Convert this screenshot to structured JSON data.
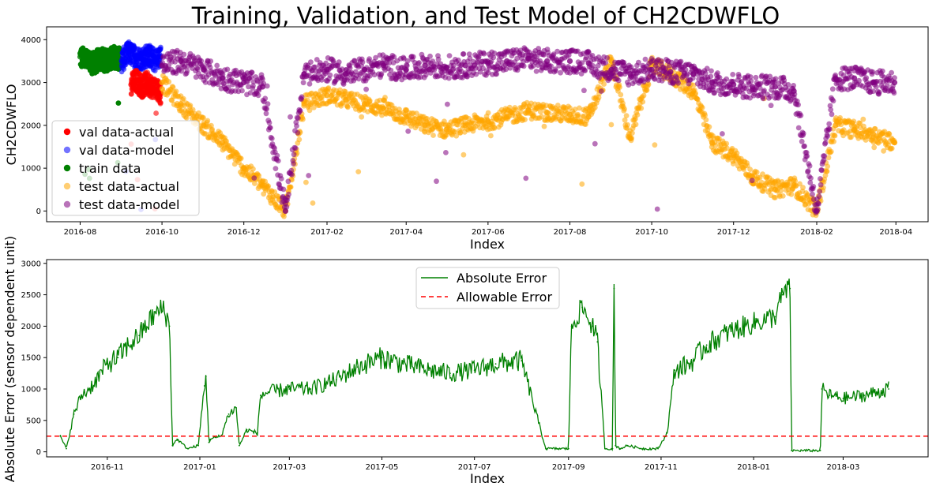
{
  "chart_data": [
    {
      "type": "scatter",
      "title": "Training, Validation, and Test Model of CH2CDWFLO",
      "xlabel": "Index",
      "ylabel": "CH2CDWFLO",
      "x_range": [
        "2016-07-07",
        "2018-04-25"
      ],
      "ylim": [
        -250,
        4300
      ],
      "x_ticks": [
        "2016-08",
        "2016-10",
        "2016-12",
        "2017-02",
        "2017-04",
        "2017-06",
        "2017-08",
        "2017-10",
        "2017-12",
        "2018-02",
        "2018-04"
      ],
      "y_ticks": [
        "0",
        "1000",
        "2000",
        "3000",
        "4000"
      ],
      "legend_position": "lower-left",
      "grid": false,
      "series": [
        {
          "name": "val data-actual",
          "color": "#ff0000",
          "x": [
            "2016-09-08",
            "2016-09-12",
            "2016-09-16",
            "2016-09-20",
            "2016-09-24",
            "2016-09-28",
            "2016-09-30"
          ],
          "y": [
            2950,
            3050,
            2900,
            3000,
            2880,
            2850,
            2750
          ]
        },
        {
          "name": "val data-model",
          "color": "#0000ff",
          "x": [
            "2016-09-01",
            "2016-09-06",
            "2016-09-11",
            "2016-09-16",
            "2016-09-21",
            "2016-09-26",
            "2016-09-30"
          ],
          "y": [
            3500,
            3700,
            3600,
            3550,
            3650,
            3500,
            3600
          ]
        },
        {
          "name": "train data",
          "color": "#008000",
          "x": [
            "2016-08-01",
            "2016-08-06",
            "2016-08-11",
            "2016-08-16",
            "2016-08-21",
            "2016-08-26",
            "2016-08-31"
          ],
          "y": [
            3600,
            3500,
            3450,
            3550,
            3500,
            3600,
            3550
          ]
        },
        {
          "name": "test data-actual",
          "color": "#ffa500",
          "x": [
            "2016-10-01",
            "2016-10-15",
            "2016-11-01",
            "2016-11-15",
            "2016-12-01",
            "2016-12-15",
            "2017-01-01",
            "2017-01-15",
            "2017-02-01",
            "2017-02-15",
            "2017-03-01",
            "2017-03-15",
            "2017-04-01",
            "2017-04-15",
            "2017-05-01",
            "2017-05-15",
            "2017-06-01",
            "2017-06-15",
            "2017-07-01",
            "2017-07-15",
            "2017-08-01",
            "2017-08-15",
            "2017-09-01",
            "2017-09-15",
            "2017-10-01",
            "2017-10-15",
            "2017-11-01",
            "2017-11-15",
            "2017-12-01",
            "2017-12-15",
            "2018-01-01",
            "2018-01-15",
            "2018-02-01",
            "2018-02-15",
            "2018-03-01",
            "2018-03-15",
            "2018-03-31"
          ],
          "y": [
            3000,
            2500,
            2000,
            1600,
            1000,
            600,
            0,
            2500,
            2700,
            2600,
            2500,
            2400,
            2200,
            2000,
            1900,
            2000,
            2100,
            2200,
            2350,
            2300,
            2250,
            2200,
            3500,
            1700,
            3400,
            3200,
            2800,
            1600,
            1300,
            800,
            500,
            600,
            0,
            2000,
            1900,
            1800,
            1600
          ]
        },
        {
          "name": "test data-model",
          "color": "#800080",
          "x": [
            "2016-10-01",
            "2016-10-15",
            "2016-11-01",
            "2016-11-15",
            "2016-12-01",
            "2016-12-15",
            "2017-01-01",
            "2017-01-15",
            "2017-02-01",
            "2017-02-15",
            "2017-03-01",
            "2017-03-15",
            "2017-04-01",
            "2017-04-15",
            "2017-05-01",
            "2017-05-15",
            "2017-06-01",
            "2017-06-15",
            "2017-07-01",
            "2017-07-15",
            "2017-08-01",
            "2017-08-15",
            "2017-09-01",
            "2017-09-15",
            "2017-10-01",
            "2017-10-15",
            "2017-11-01",
            "2017-11-15",
            "2017-12-01",
            "2017-12-15",
            "2018-01-01",
            "2018-01-15",
            "2018-02-01",
            "2018-02-15",
            "2018-03-01",
            "2018-03-15",
            "2018-03-31"
          ],
          "y": [
            3400,
            3500,
            3300,
            3100,
            3000,
            2900,
            0,
            3200,
            3300,
            3200,
            3300,
            3400,
            3300,
            3400,
            3350,
            3400,
            3450,
            3500,
            3550,
            3500,
            3500,
            3450,
            3300,
            3200,
            3300,
            3250,
            3200,
            3000,
            2950,
            2900,
            2900,
            2800,
            0,
            3100,
            3100,
            3000,
            3000
          ]
        }
      ]
    },
    {
      "type": "line",
      "title": "",
      "xlabel": "Index",
      "ylabel": "Absolute Error (sensor dependent unit)",
      "x_range": [
        "2016-09-22",
        "2018-04-26"
      ],
      "ylim": [
        -80,
        3060
      ],
      "x_ticks": [
        "2016-11",
        "2017-01",
        "2017-03",
        "2017-05",
        "2017-07",
        "2017-09",
        "2017-11",
        "2018-01",
        "2018-03"
      ],
      "y_ticks": [
        "0",
        "500",
        "1000",
        "1500",
        "2000",
        "2500",
        "3000"
      ],
      "legend_position": "upper-center",
      "grid": false,
      "allowable_error": 250,
      "series": [
        {
          "name": "Absolute Error",
          "color": "#008000",
          "style": "solid",
          "x": [
            "2016-10-01",
            "2016-10-05",
            "2016-10-10",
            "2016-10-15",
            "2016-10-20",
            "2016-10-25",
            "2016-11-01",
            "2016-11-08",
            "2016-11-15",
            "2016-11-22",
            "2016-12-01",
            "2016-12-08",
            "2016-12-12",
            "2016-12-14",
            "2016-12-17",
            "2016-12-24",
            "2016-12-31",
            "2017-01-04",
            "2017-01-05",
            "2017-01-07",
            "2017-01-08",
            "2017-01-15",
            "2017-01-20",
            "2017-01-25",
            "2017-01-27",
            "2017-02-01",
            "2017-02-08",
            "2017-02-10",
            "2017-02-15",
            "2017-03-01",
            "2017-03-15",
            "2017-04-01",
            "2017-04-15",
            "2017-05-01",
            "2017-05-15",
            "2017-06-01",
            "2017-06-15",
            "2017-07-01",
            "2017-07-15",
            "2017-08-01",
            "2017-08-17",
            "2017-08-18",
            "2017-08-25",
            "2017-09-01",
            "2017-09-03",
            "2017-09-10",
            "2017-09-17",
            "2017-09-20",
            "2017-09-25",
            "2017-09-30",
            "2017-10-01",
            "2017-10-02",
            "2017-10-05",
            "2017-10-10",
            "2017-10-20",
            "2017-10-30",
            "2017-11-05",
            "2017-11-10",
            "2017-11-20",
            "2017-12-01",
            "2017-12-15",
            "2018-01-01",
            "2018-01-15",
            "2018-01-20",
            "2018-01-25",
            "2018-01-26",
            "2018-02-10",
            "2018-02-14",
            "2018-02-15",
            "2018-02-20",
            "2018-03-01",
            "2018-03-15",
            "2018-03-31"
          ],
          "y": [
            250,
            50,
            600,
            900,
            1000,
            1150,
            1400,
            1500,
            1700,
            1850,
            2150,
            2300,
            2000,
            100,
            200,
            50,
            100,
            1050,
            1200,
            150,
            200,
            250,
            600,
            700,
            100,
            350,
            300,
            900,
            950,
            1000,
            1000,
            1150,
            1350,
            1500,
            1400,
            1300,
            1250,
            1300,
            1400,
            1450,
            50,
            50,
            50,
            50,
            2000,
            2300,
            2000,
            1750,
            50,
            50,
            2600,
            100,
            50,
            100,
            50,
            50,
            300,
            1300,
            1400,
            1700,
            1900,
            2050,
            2150,
            2500,
            2600,
            20,
            20,
            20,
            1000,
            900,
            850,
            900,
            1000
          ]
        },
        {
          "name": "Allowable Error",
          "color": "#ff0000",
          "style": "dashed",
          "x": [
            "2016-09-22",
            "2018-04-26"
          ],
          "y": [
            250,
            250
          ]
        }
      ]
    }
  ]
}
